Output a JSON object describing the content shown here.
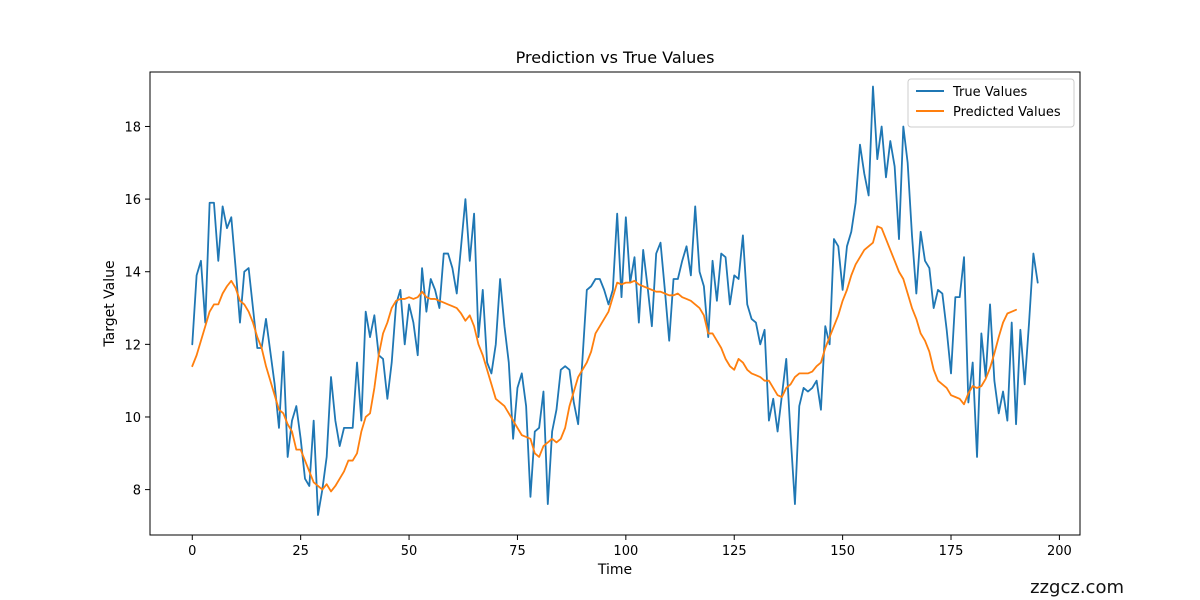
{
  "chart_data": {
    "type": "line",
    "title": "Prediction vs True Values",
    "xlabel": "Time",
    "ylabel": "Target Value",
    "xlim": [
      -9.75,
      204.75
    ],
    "ylim": [
      6.75,
      19.5
    ],
    "xticks": [
      0,
      25,
      50,
      75,
      100,
      125,
      150,
      175,
      200
    ],
    "yticks": [
      8,
      10,
      12,
      14,
      16,
      18
    ],
    "legend_position": "top-right",
    "series": [
      {
        "name": "True Values",
        "color": "#1f77b4",
        "values": [
          12.0,
          13.9,
          14.3,
          12.6,
          15.9,
          15.9,
          14.3,
          15.8,
          15.2,
          15.5,
          14.1,
          12.6,
          14.0,
          14.1,
          13.0,
          11.9,
          11.9,
          12.7,
          11.8,
          10.9,
          9.7,
          11.8,
          8.9,
          9.9,
          10.3,
          9.4,
          8.3,
          8.1,
          9.9,
          7.3,
          8.0,
          8.9,
          11.1,
          9.9,
          9.2,
          9.7,
          9.7,
          9.7,
          11.5,
          9.9,
          12.9,
          12.2,
          12.8,
          11.7,
          11.6,
          10.5,
          11.5,
          13.1,
          13.5,
          12.0,
          13.1,
          12.6,
          11.7,
          14.1,
          12.9,
          13.8,
          13.5,
          13.0,
          14.5,
          14.5,
          14.1,
          13.4,
          14.7,
          16.0,
          14.3,
          15.6,
          12.2,
          13.5,
          11.5,
          11.2,
          12.0,
          13.8,
          12.5,
          11.5,
          9.4,
          10.8,
          11.2,
          10.3,
          7.8,
          9.6,
          9.7,
          10.7,
          7.6,
          9.6,
          10.2,
          11.3,
          11.4,
          11.3,
          10.4,
          9.8,
          11.6,
          13.5,
          13.6,
          13.8,
          13.8,
          13.5,
          13.1,
          13.5,
          15.6,
          13.3,
          15.5,
          13.7,
          14.4,
          12.6,
          14.6,
          13.6,
          12.5,
          14.5,
          14.8,
          13.5,
          12.1,
          13.8,
          13.8,
          14.3,
          14.7,
          13.9,
          15.8,
          14.0,
          13.6,
          12.2,
          14.3,
          13.2,
          14.5,
          14.4,
          13.1,
          13.9,
          13.8,
          15.0,
          13.1,
          12.7,
          12.6,
          12.0,
          12.4,
          9.9,
          10.5,
          9.6,
          10.6,
          11.6,
          9.5,
          7.6,
          10.3,
          10.8,
          10.7,
          10.8,
          11.0,
          10.2,
          12.5,
          12.0,
          14.9,
          14.7,
          13.5,
          14.7,
          15.1,
          15.9,
          17.5,
          16.7,
          16.1,
          19.1,
          17.1,
          18.0,
          16.6,
          17.6,
          16.9,
          14.9,
          18.0,
          17.0,
          15.0,
          13.4,
          15.1,
          14.3,
          14.1,
          13.0,
          13.5,
          13.4,
          12.4,
          11.2,
          13.3,
          13.3,
          14.4,
          10.4,
          11.5,
          8.9,
          12.3,
          11.1,
          13.1,
          11.0,
          10.1,
          10.7,
          9.9,
          12.6,
          9.8,
          12.4,
          10.9,
          12.6,
          14.5,
          13.7
        ]
      },
      {
        "name": "Predicted Values",
        "color": "#ff7f0e",
        "values": [
          11.4,
          11.7,
          12.1,
          12.5,
          12.9,
          13.1,
          13.1,
          13.4,
          13.6,
          13.75,
          13.55,
          13.2,
          13.1,
          12.9,
          12.6,
          12.2,
          11.9,
          11.4,
          11.0,
          10.6,
          10.2,
          10.1,
          9.8,
          9.6,
          9.1,
          9.1,
          8.8,
          8.5,
          8.2,
          8.1,
          8.0,
          8.15,
          7.95,
          8.1,
          8.3,
          8.5,
          8.8,
          8.8,
          9.0,
          9.6,
          10.0,
          10.1,
          10.8,
          11.7,
          12.3,
          12.6,
          13.0,
          13.2,
          13.25,
          13.25,
          13.3,
          13.25,
          13.3,
          13.45,
          13.3,
          13.25,
          13.25,
          13.2,
          13.15,
          13.1,
          13.05,
          13.0,
          12.85,
          12.65,
          12.8,
          12.5,
          12.0,
          11.7,
          11.3,
          10.9,
          10.5,
          10.4,
          10.3,
          10.1,
          9.9,
          9.7,
          9.5,
          9.45,
          9.4,
          9.0,
          8.9,
          9.2,
          9.3,
          9.4,
          9.3,
          9.4,
          9.7,
          10.3,
          10.7,
          11.1,
          11.3,
          11.5,
          11.8,
          12.3,
          12.5,
          12.7,
          12.9,
          13.3,
          13.7,
          13.65,
          13.7,
          13.7,
          13.75,
          13.65,
          13.6,
          13.55,
          13.5,
          13.45,
          13.45,
          13.4,
          13.35,
          13.35,
          13.4,
          13.3,
          13.25,
          13.2,
          13.1,
          13.0,
          12.8,
          12.3,
          12.3,
          12.1,
          11.9,
          11.6,
          11.4,
          11.3,
          11.6,
          11.5,
          11.3,
          11.2,
          11.15,
          11.1,
          11.0,
          11.0,
          10.8,
          10.6,
          10.55,
          10.8,
          10.9,
          11.1,
          11.2,
          11.2,
          11.2,
          11.25,
          11.4,
          11.5,
          11.9,
          12.2,
          12.5,
          12.8,
          13.2,
          13.5,
          13.9,
          14.2,
          14.4,
          14.6,
          14.7,
          14.8,
          15.25,
          15.2,
          14.9,
          14.6,
          14.3,
          14.0,
          13.8,
          13.4,
          13.0,
          12.7,
          12.3,
          12.1,
          11.8,
          11.3,
          11.0,
          10.9,
          10.8,
          10.6,
          10.55,
          10.5,
          10.35,
          10.65,
          10.85,
          10.8,
          10.85,
          11.05,
          11.35,
          11.75,
          12.2,
          12.6,
          12.85,
          12.9,
          12.95
        ]
      }
    ]
  },
  "watermark": "zzgcz.com"
}
